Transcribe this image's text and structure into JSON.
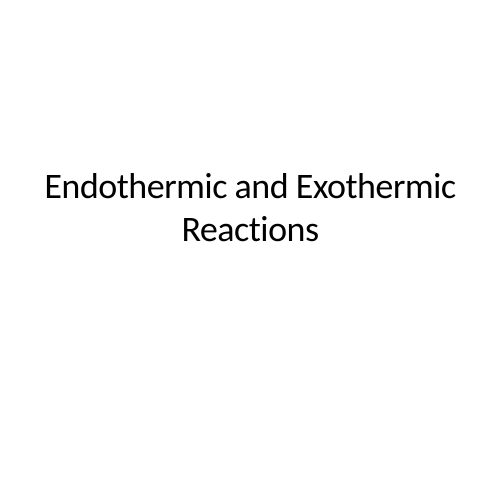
{
  "slide": {
    "title": "Endothermic and Exothermic Reactions",
    "background_color": "#ffffff",
    "title_color": "#000000",
    "title_fontsize": 36,
    "title_fontweight": 400,
    "font_family": "Calibri"
  }
}
